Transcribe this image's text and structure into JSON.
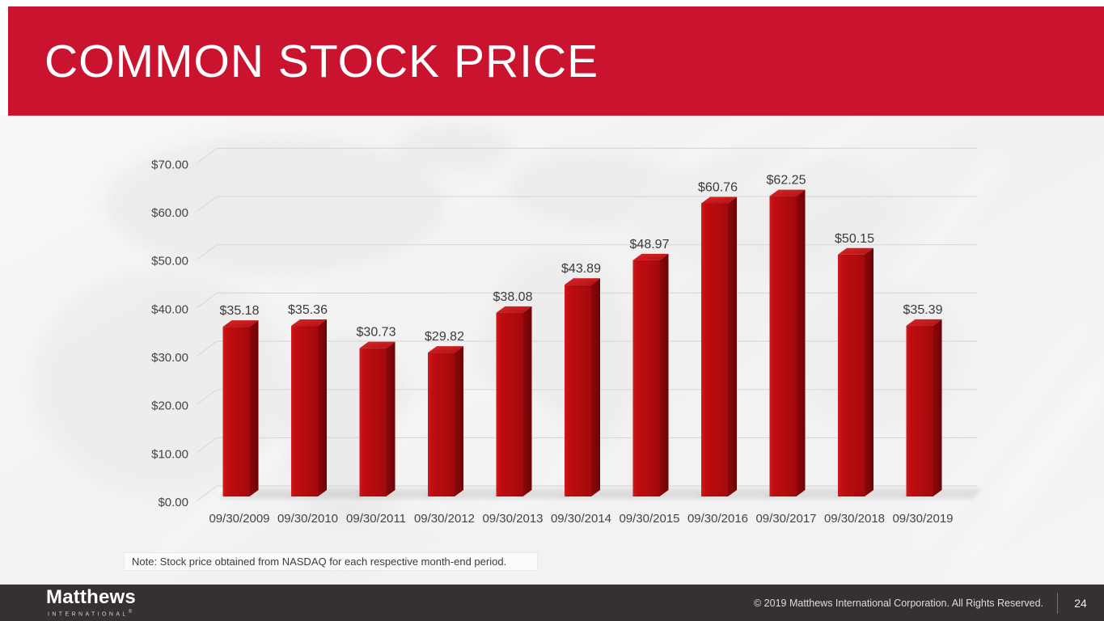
{
  "slide": {
    "title": "COMMON STOCK PRICE",
    "note": "Note: Stock price obtained from NASDAQ for each respective month-end period."
  },
  "footer": {
    "logo_text": "Matthews",
    "logo_subtext": "INTERNATIONAL",
    "logo_registered": "®",
    "copyright": "© 2019 Matthews International Corporation. All Rights Reserved.",
    "page_number": "24"
  },
  "colors": {
    "banner_red": "#c9132f",
    "bar_front": "#c00d10",
    "bar_side": "#6d0306",
    "bar_top": "#b31013",
    "footer_bg": "#353130",
    "grid_line": "#d9d9d9",
    "axis_text": "#444444",
    "value_text": "#3a3a3a"
  },
  "chart_data": {
    "type": "bar",
    "style": "3d-column",
    "title": "COMMON STOCK PRICE",
    "xlabel": "",
    "ylabel": "",
    "grid": true,
    "legend": false,
    "ylim": [
      0,
      70
    ],
    "categories": [
      "09/30/2009",
      "09/30/2010",
      "09/30/2011",
      "09/30/2012",
      "09/30/2013",
      "09/30/2014",
      "09/30/2015",
      "09/30/2016",
      "09/30/2017",
      "09/30/2018",
      "09/30/2019"
    ],
    "values": [
      35.18,
      35.36,
      30.73,
      29.82,
      38.08,
      43.89,
      48.97,
      60.76,
      62.25,
      50.15,
      35.39
    ],
    "value_labels": [
      "$35.18",
      "$35.36",
      "$30.73",
      "$29.82",
      "$38.08",
      "$43.89",
      "$48.97",
      "$60.76",
      "$62.25",
      "$50.15",
      "$35.39"
    ],
    "y_tick_values": [
      0,
      10,
      20,
      30,
      40,
      50,
      60,
      70
    ],
    "y_tick_labels": [
      "$0.00",
      "$10.00",
      "$20.00",
      "$30.00",
      "$40.00",
      "$50.00",
      "$60.00",
      "$70.00"
    ]
  }
}
